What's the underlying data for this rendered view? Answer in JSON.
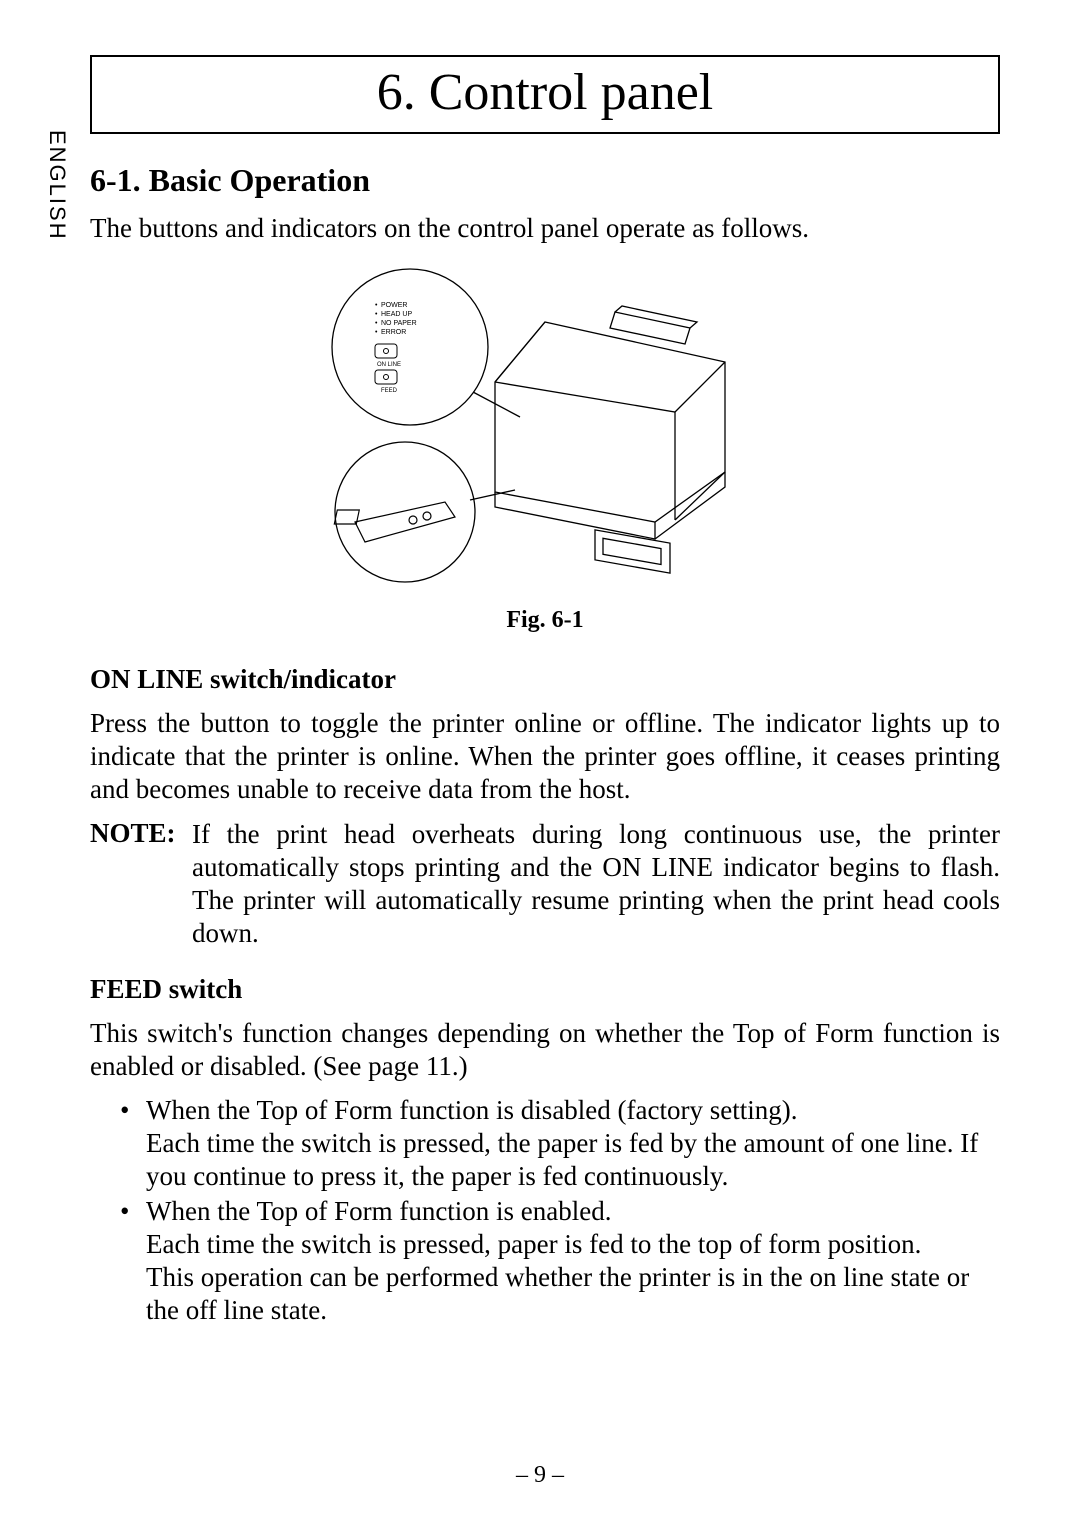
{
  "sideTab": "ENGLISH",
  "titleBox": "6. Control panel",
  "section": {
    "heading": "6-1. Basic Operation",
    "intro": "The buttons and indicators on the control panel operate as follows."
  },
  "figure": {
    "caption": "Fig. 6-1",
    "panelLabels": {
      "power": "POWER",
      "headup": "HEAD UP",
      "nopaper": "NO PAPER",
      "error": "ERROR",
      "online": "ON LINE",
      "feed": "FEED"
    }
  },
  "online": {
    "heading": "ON LINE switch/indicator",
    "body": "Press the button to toggle the printer online or offline. The indicator lights up to indicate that the printer is online. When the printer goes offline, it ceases printing and becomes unable to receive data from the host.",
    "noteLabel": "NOTE:",
    "noteBody": "If the print head overheats during long continuous use, the printer automatically stops printing and the ON LINE indicator begins to flash. The printer will automatically resume printing when the print head cools down."
  },
  "feed": {
    "heading": "FEED switch",
    "body": "This switch's function changes depending on whether the Top of Form function is enabled or disabled. (See page 11.)",
    "bullets": [
      "When the Top of Form function is disabled (factory setting).\nEach time the switch is pressed, the paper is fed by the amount of one line. If you continue to press it, the paper is fed continuously.",
      "When the Top of Form function is enabled.\nEach time the switch is pressed, paper is fed to the top of form position.\nThis operation can be performed whether the printer is in the on line state or the off line state."
    ]
  },
  "pageNumber": "– 9 –"
}
